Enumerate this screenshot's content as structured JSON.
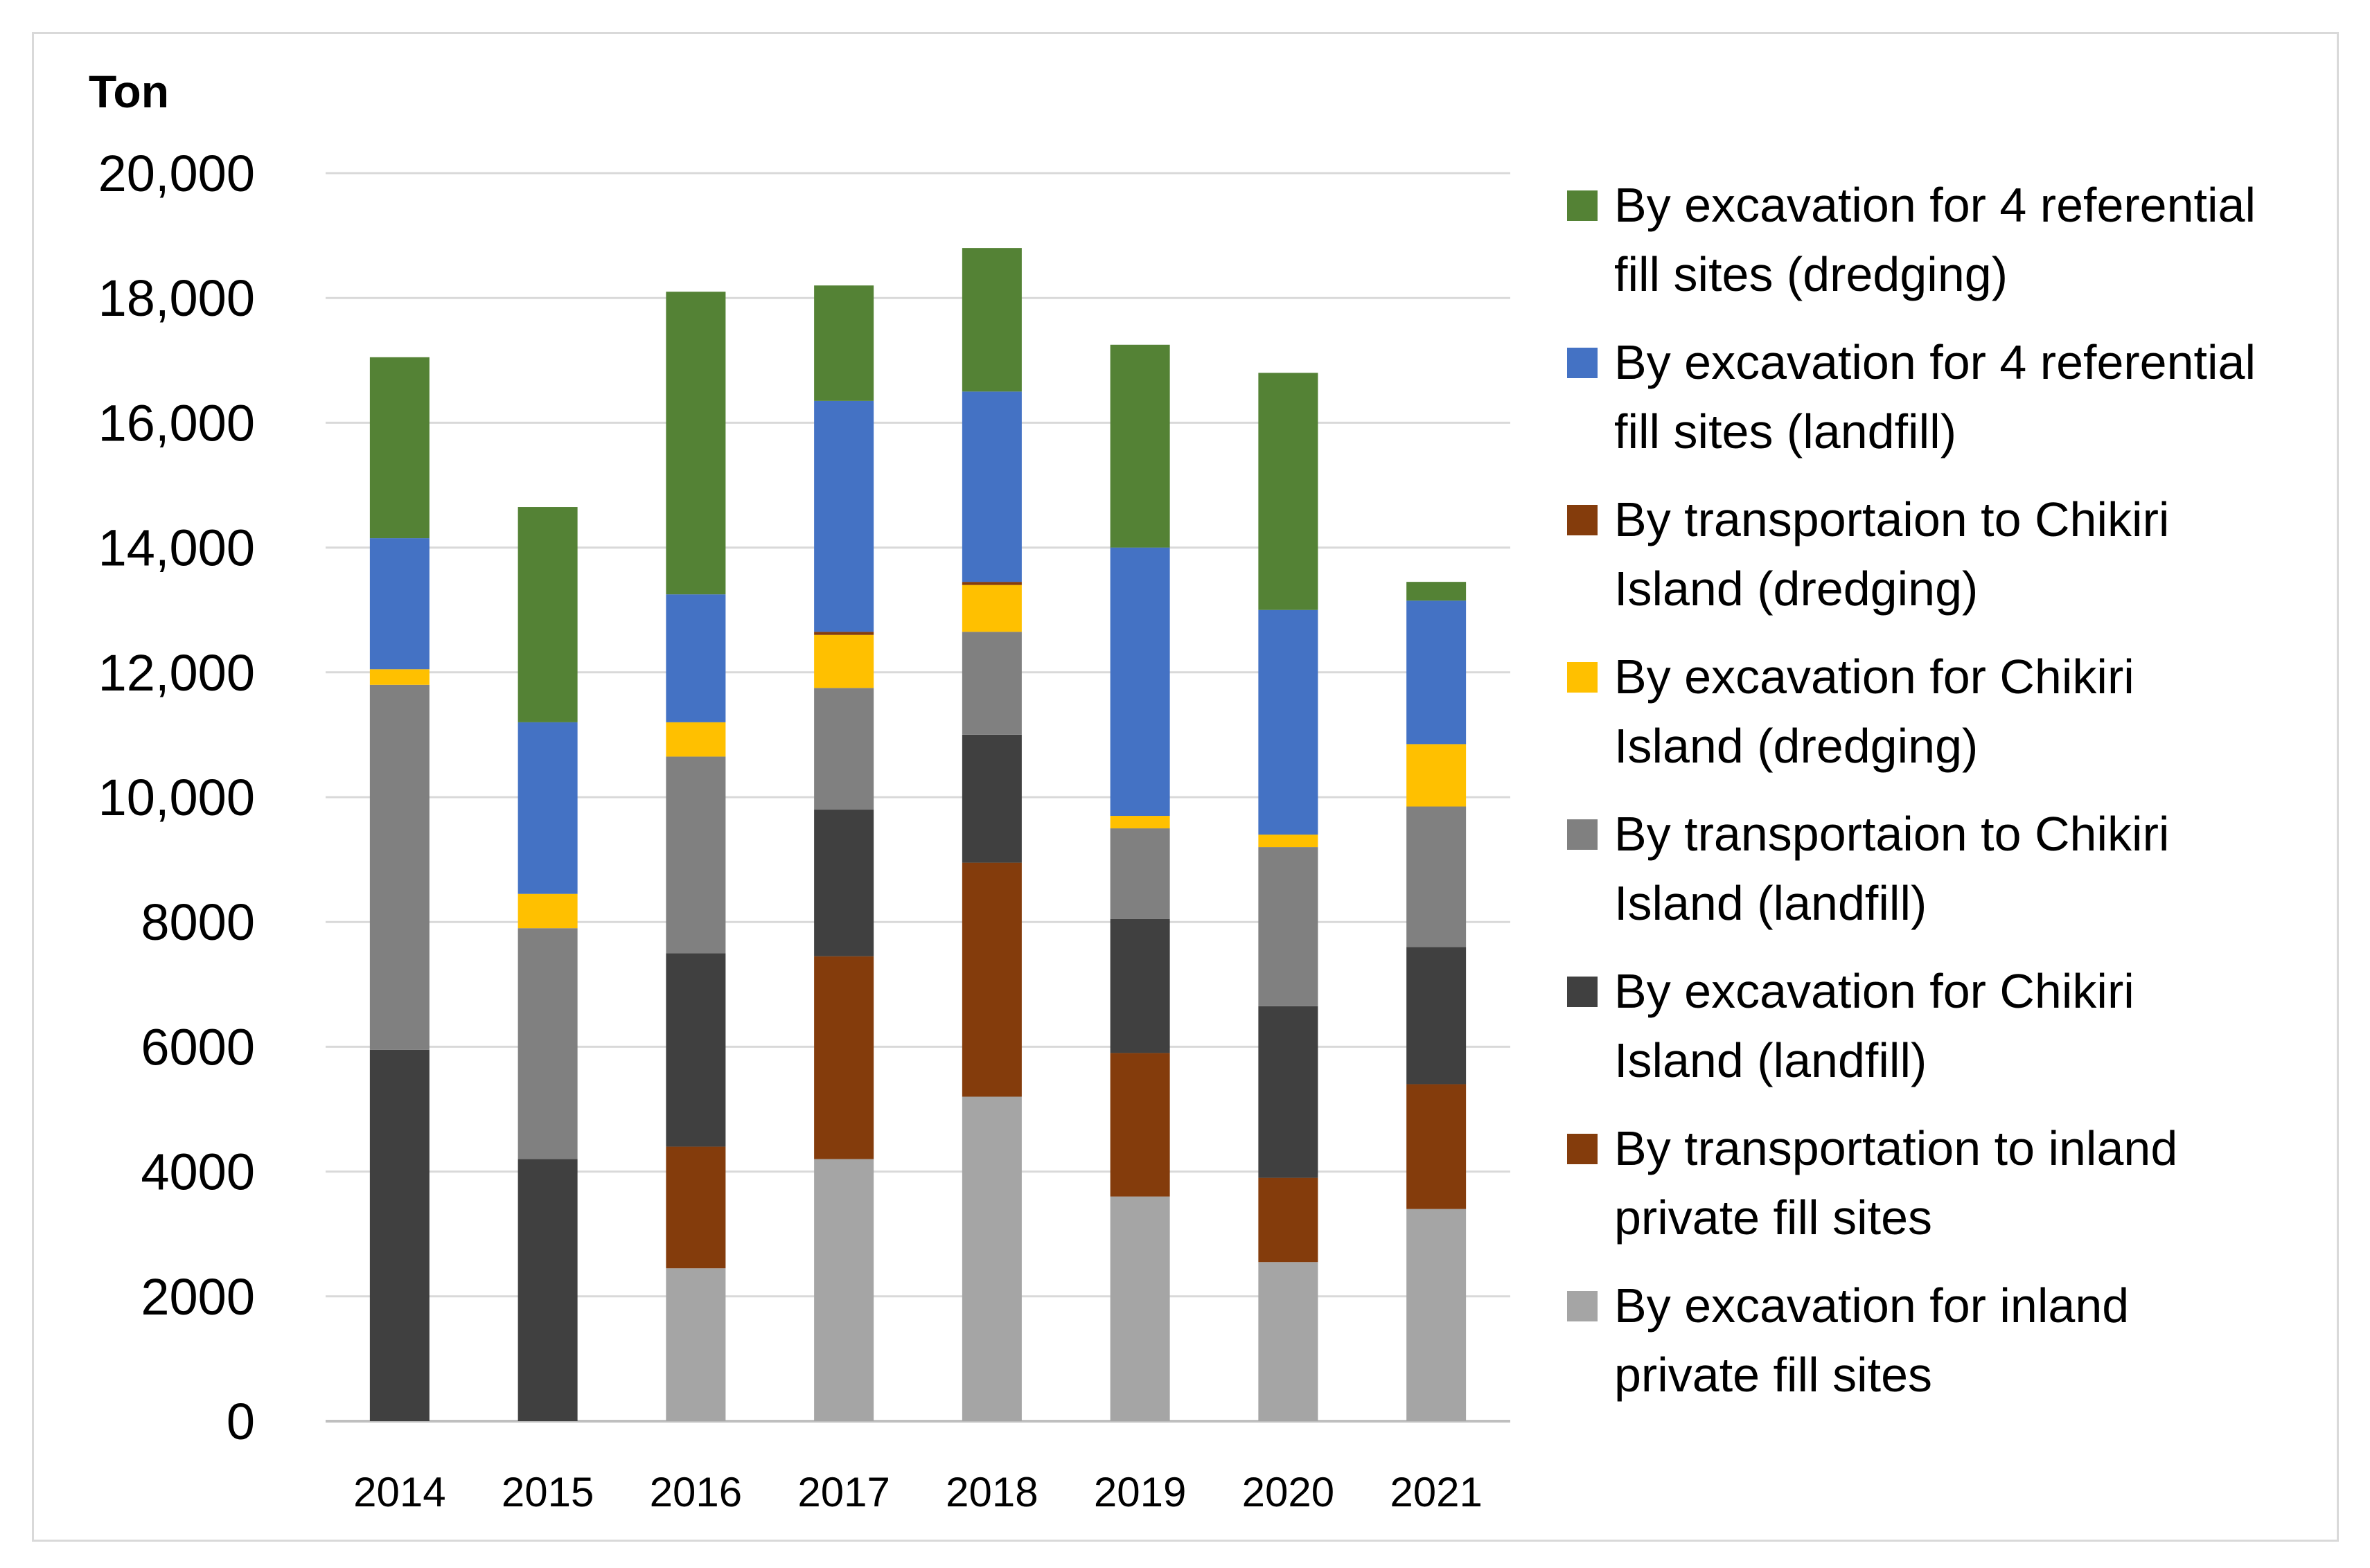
{
  "chart_data": {
    "type": "bar",
    "stacked": true,
    "ylabel": "Ton",
    "ylim": [
      0,
      20000
    ],
    "grid": true,
    "legend_position": "right",
    "y_tick_labels": [
      "0",
      "2000",
      "4000",
      "6000",
      "8000",
      "10,000",
      "12,000",
      "14,000",
      "16,000",
      "18,000",
      "20,000"
    ],
    "y_tick_values": [
      0,
      2000,
      4000,
      6000,
      8000,
      10000,
      12000,
      14000,
      16000,
      18000,
      20000
    ],
    "categories": [
      "2014",
      "2015",
      "2016",
      "2017",
      "2018",
      "2019",
      "2020",
      "2021"
    ],
    "series": [
      {
        "name": "By excavation for inland private fill sites",
        "legend_lines": [
          "By excavation for inland",
          "private fill sites"
        ],
        "color": "#a5a5a5",
        "values": [
          0,
          0,
          2450,
          4200,
          5200,
          3600,
          2550,
          3400
        ]
      },
      {
        "name": "By transportation to inland private fill sites",
        "legend_lines": [
          "By transportation to inland",
          "private fill sites"
        ],
        "color": "#843c0c",
        "values": [
          0,
          0,
          1950,
          3250,
          3750,
          2300,
          1350,
          2000
        ]
      },
      {
        "name": "By excavation for Chikiri Island (landfill)",
        "legend_lines": [
          "By excavation for Chikiri",
          "Island (landfill)"
        ],
        "color": "#404040",
        "values": [
          5950,
          4200,
          3100,
          2350,
          2050,
          2150,
          2750,
          2200
        ]
      },
      {
        "name": "By transportaion to Chikiri Island (landfill)",
        "legend_lines": [
          "By transportaion to Chikiri",
          "Island (landfill)"
        ],
        "color": "#808080",
        "values": [
          5850,
          3700,
          3150,
          1950,
          1650,
          1450,
          2550,
          2250
        ]
      },
      {
        "name": "By excavation for Chikiri Island (dredging)",
        "legend_lines": [
          "By excavation for Chikiri",
          "Island (dredging)"
        ],
        "color": "#ffc000",
        "values": [
          250,
          550,
          550,
          850,
          750,
          200,
          200,
          1000
        ]
      },
      {
        "name": "By transportaion to Chikiri Island (dredging)",
        "legend_lines": [
          "By transportaion to Chikiri",
          "Island (dredging)"
        ],
        "color": "#843c0c",
        "values": [
          0,
          0,
          0,
          50,
          50,
          0,
          0,
          0
        ]
      },
      {
        "name": "By excavation for 4 referential fill sites (landfill)",
        "legend_lines": [
          "By excavation for 4 referential",
          "fill sites (landfill)"
        ],
        "color": "#4472c4",
        "values": [
          2100,
          2750,
          2050,
          3700,
          3050,
          4300,
          3600,
          2300
        ]
      },
      {
        "name": "By excavation for 4 referential fill sites (dredging)",
        "legend_lines": [
          "By excavation for 4 referential",
          "fill sites (dredging)"
        ],
        "color": "#548235",
        "values": [
          2900,
          3450,
          4850,
          1850,
          2300,
          3250,
          3800,
          300
        ]
      }
    ]
  }
}
